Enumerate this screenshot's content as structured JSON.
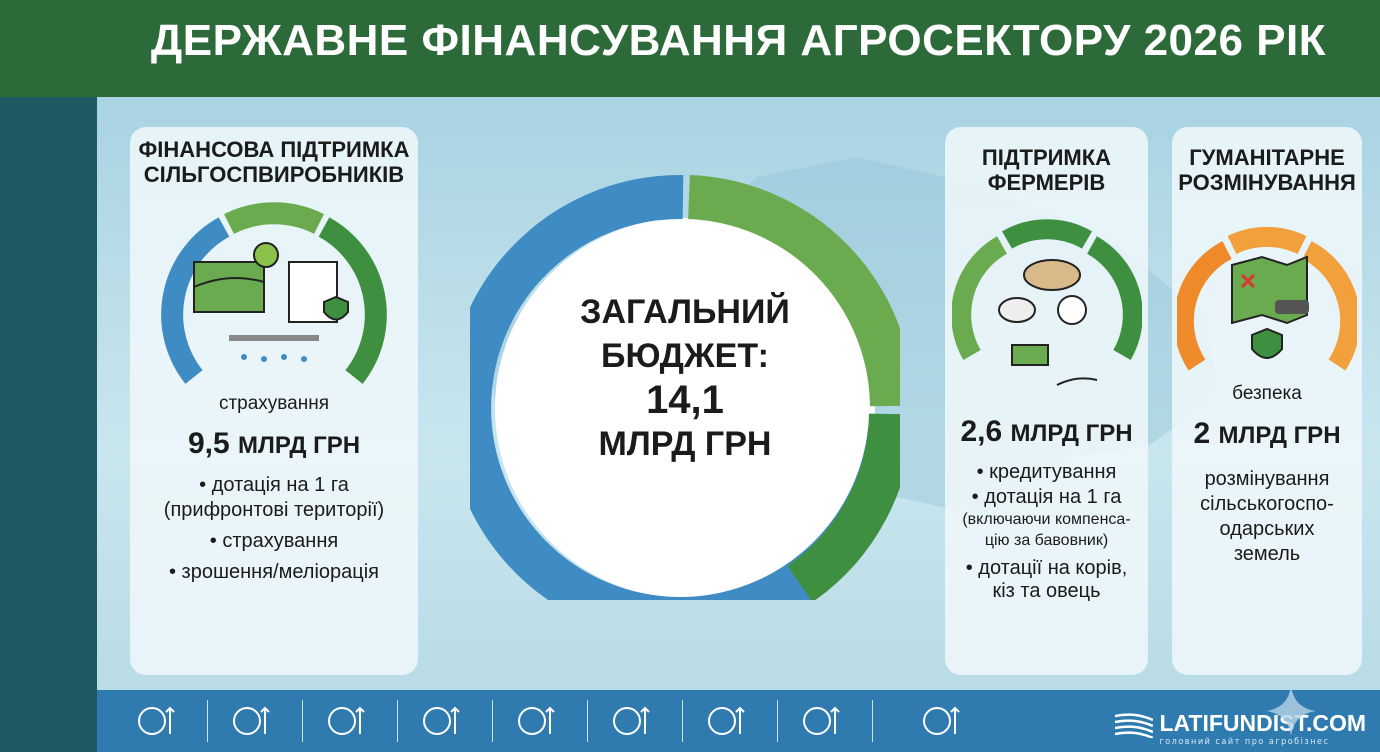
{
  "header": {
    "title": "ДЕРЖАВНЕ ФІНАНСУВАННЯ АГРОСЕКТОРУ 2026 РІК"
  },
  "center": {
    "line1": "ЗАГАЛЬНИЙ",
    "line2": "БЮДЖЕТ:",
    "value": "14,1",
    "unit": "МЛРД ГРН"
  },
  "cards": [
    {
      "title1": "ФІНАНСОВА ПІДТРИМКА",
      "title2": "СІЛЬГОСПВИРОБНИКІВ",
      "icon_label": "страхування",
      "amount": "9,5",
      "unit": "МЛРД ГРН",
      "items": [
        "• дотація на 1 га",
        "(прифронтові території)",
        "• страхування",
        "• зрошення/меліорація"
      ]
    },
    {
      "title1": "ПІДТРИМКА",
      "title2": "ФЕРМЕРІВ",
      "amount": "2,6",
      "unit": "МЛРД ГРН",
      "items": [
        "• кредитування",
        "• дотація на 1 га",
        "(включаючи компенса-",
        "цію за бавовник)",
        "• дотації на корів,",
        "кіз та овець"
      ]
    },
    {
      "title1": "ГУМАНІТАРНЕ",
      "title2": "РОЗМІНУВАННЯ",
      "icon_label": "безпека",
      "amount": "2",
      "unit": "МЛРД ГРН",
      "items": [
        "розмінування",
        "сільськогоспо-",
        "одарських",
        "земель"
      ]
    }
  ],
  "colors": {
    "blue": "#3f8cc4",
    "green_light": "#6aab4f",
    "green_dark": "#3f8f41",
    "orange": "#ee8a2a",
    "title_bg": "#2c6a3a"
  },
  "bottom_icons": [
    "corn-down-icon",
    "wheat-up-icon",
    "bean-up-icon",
    "plant-icon",
    "dna-check-icon",
    "microbe-icon",
    "soil-plant-icon",
    "seedling-soil-icon",
    "irrigation-icon"
  ],
  "logo": {
    "name": "LATIFUNDIST.COM",
    "tagline": "головний сайт про агробізнес"
  }
}
